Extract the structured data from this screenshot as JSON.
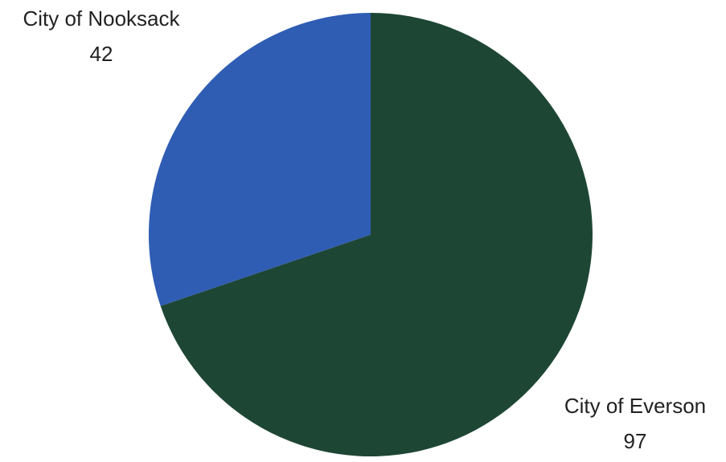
{
  "chart_data": {
    "type": "pie",
    "start_angle_deg": 0,
    "direction": "clockwise",
    "slices": [
      {
        "label": "City of Everson",
        "value": 97,
        "color": "#1e4634"
      },
      {
        "label": "City of Nooksack",
        "value": 42,
        "color": "#2f5db4"
      }
    ],
    "data_labels": [
      {
        "name": "City of Everson",
        "value": "97"
      },
      {
        "name": "City of Nooksack",
        "value": "42"
      }
    ]
  }
}
